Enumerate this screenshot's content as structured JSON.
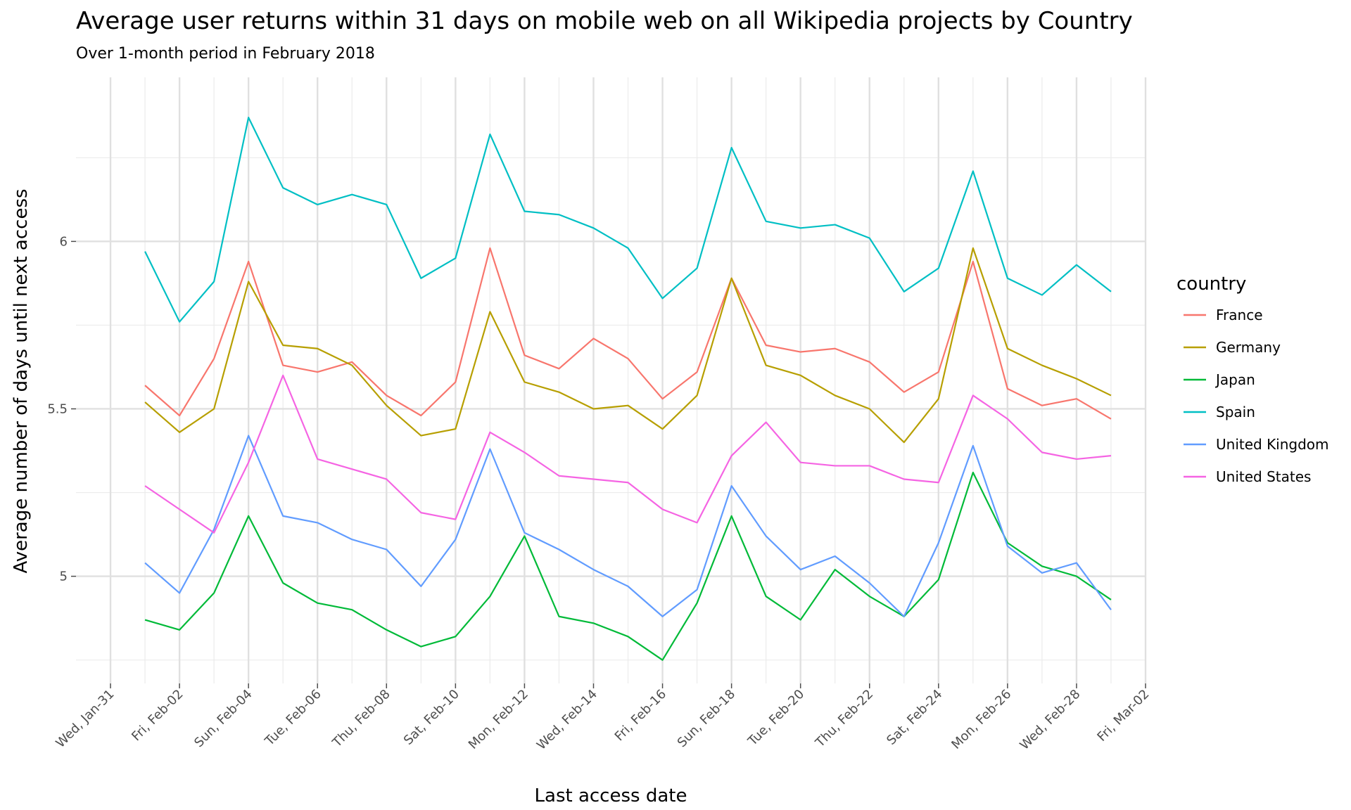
{
  "chart_data": {
    "type": "line",
    "title": "Average user returns within 31 days on mobile web on all Wikipedia projects by Country",
    "subtitle": "Over 1-month period in February 2018",
    "xlabel": "Last access date",
    "ylabel": "Average number of days until next access",
    "x": [
      "2018-02-01",
      "2018-02-02",
      "2018-02-03",
      "2018-02-04",
      "2018-02-05",
      "2018-02-06",
      "2018-02-07",
      "2018-02-08",
      "2018-02-09",
      "2018-02-10",
      "2018-02-11",
      "2018-02-12",
      "2018-02-13",
      "2018-02-14",
      "2018-02-15",
      "2018-02-16",
      "2018-02-17",
      "2018-02-18",
      "2018-02-19",
      "2018-02-20",
      "2018-02-21",
      "2018-02-22",
      "2018-02-23",
      "2018-02-24",
      "2018-02-25",
      "2018-02-26",
      "2018-02-27",
      "2018-02-28",
      "2018-03-01"
    ],
    "xlim": [
      "2018-01-30",
      "2018-03-02"
    ],
    "x_ticks": [
      {
        "date": "2018-01-31",
        "label": "Wed, Jan-31"
      },
      {
        "date": "2018-02-02",
        "label": "Fri, Feb-02"
      },
      {
        "date": "2018-02-04",
        "label": "Sun, Feb-04"
      },
      {
        "date": "2018-02-06",
        "label": "Tue, Feb-06"
      },
      {
        "date": "2018-02-08",
        "label": "Thu, Feb-08"
      },
      {
        "date": "2018-02-10",
        "label": "Sat, Feb-10"
      },
      {
        "date": "2018-02-12",
        "label": "Mon, Feb-12"
      },
      {
        "date": "2018-02-14",
        "label": "Wed, Feb-14"
      },
      {
        "date": "2018-02-16",
        "label": "Fri, Feb-16"
      },
      {
        "date": "2018-02-18",
        "label": "Sun, Feb-18"
      },
      {
        "date": "2018-02-20",
        "label": "Tue, Feb-20"
      },
      {
        "date": "2018-02-22",
        "label": "Thu, Feb-22"
      },
      {
        "date": "2018-02-24",
        "label": "Sat, Feb-24"
      },
      {
        "date": "2018-02-26",
        "label": "Mon, Feb-26"
      },
      {
        "date": "2018-02-28",
        "label": "Wed, Feb-28"
      },
      {
        "date": "2018-03-02",
        "label": "Fri, Mar-02"
      }
    ],
    "ylim": [
      4.68,
      6.49
    ],
    "y_ticks": [
      5,
      5.5,
      6
    ],
    "y_tick_labels": [
      "5",
      "5.5",
      "6"
    ],
    "grid": true,
    "legend": {
      "title": "country",
      "position": "right"
    },
    "series": [
      {
        "name": "France",
        "color": "#F8766D",
        "values": [
          5.57,
          5.48,
          5.65,
          5.94,
          5.63,
          5.61,
          5.64,
          5.54,
          5.48,
          5.58,
          5.98,
          5.66,
          5.62,
          5.71,
          5.65,
          5.53,
          5.61,
          5.89,
          5.69,
          5.67,
          5.68,
          5.64,
          5.55,
          5.61,
          5.94,
          5.56,
          5.51,
          5.53,
          5.47
        ]
      },
      {
        "name": "Germany",
        "color": "#B79F00",
        "values": [
          5.52,
          5.43,
          5.5,
          5.88,
          5.69,
          5.68,
          5.63,
          5.51,
          5.42,
          5.44,
          5.79,
          5.58,
          5.55,
          5.5,
          5.51,
          5.44,
          5.54,
          5.89,
          5.63,
          5.6,
          5.54,
          5.5,
          5.4,
          5.53,
          5.98,
          5.68,
          5.63,
          5.59,
          5.54
        ]
      },
      {
        "name": "Japan",
        "color": "#00BA38",
        "values": [
          4.87,
          4.84,
          4.95,
          5.18,
          4.98,
          4.92,
          4.9,
          4.84,
          4.79,
          4.82,
          4.94,
          5.12,
          4.88,
          4.86,
          4.82,
          4.75,
          4.92,
          5.18,
          4.94,
          4.87,
          5.02,
          4.94,
          4.88,
          4.99,
          5.31,
          5.1,
          5.03,
          5.0,
          4.93
        ]
      },
      {
        "name": "Spain",
        "color": "#00BFC4",
        "values": [
          5.97,
          5.76,
          5.88,
          6.37,
          6.16,
          6.11,
          6.14,
          6.11,
          5.89,
          5.95,
          6.32,
          6.09,
          6.08,
          6.04,
          5.98,
          5.83,
          5.92,
          6.28,
          6.06,
          6.04,
          6.05,
          6.01,
          5.85,
          5.92,
          6.21,
          5.89,
          5.84,
          5.93,
          5.85
        ]
      },
      {
        "name": "United Kingdom",
        "color": "#619CFF",
        "values": [
          5.04,
          4.95,
          5.14,
          5.42,
          5.18,
          5.16,
          5.11,
          5.08,
          4.97,
          5.11,
          5.38,
          5.13,
          5.08,
          5.02,
          4.97,
          4.88,
          4.96,
          5.27,
          5.12,
          5.02,
          5.06,
          4.98,
          4.88,
          5.1,
          5.39,
          5.09,
          5.01,
          5.04,
          4.9
        ]
      },
      {
        "name": "United States",
        "color": "#F564E3",
        "values": [
          5.27,
          5.2,
          5.13,
          5.34,
          5.6,
          5.35,
          5.32,
          5.29,
          5.19,
          5.17,
          5.43,
          5.37,
          5.3,
          5.29,
          5.28,
          5.2,
          5.16,
          5.36,
          5.46,
          5.34,
          5.33,
          5.33,
          5.29,
          5.28,
          5.54,
          5.47,
          5.37,
          5.35,
          5.36
        ]
      }
    ]
  }
}
